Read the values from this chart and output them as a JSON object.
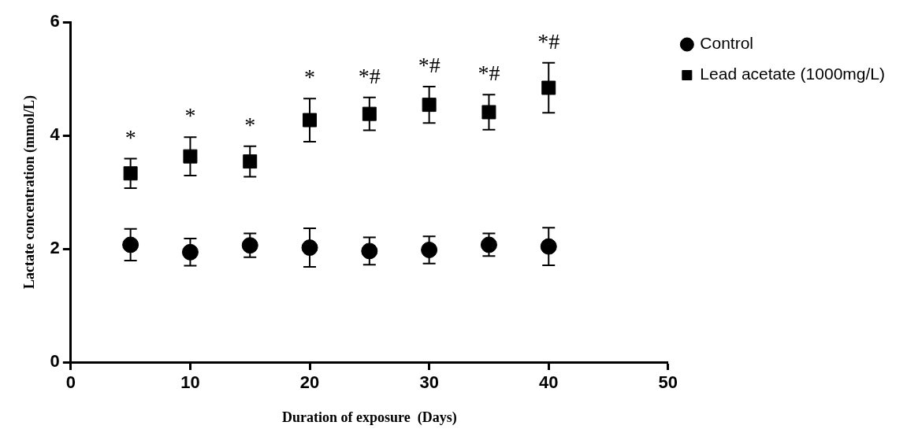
{
  "chart_data": {
    "type": "scatter",
    "xlabel": "Duration of exposure  (Days)",
    "ylabel": "Lactate concentration (mmol/L)",
    "xlim": [
      0,
      50
    ],
    "xticks": [
      0,
      10,
      20,
      30,
      40,
      50
    ],
    "ylim": [
      0,
      6
    ],
    "yticks": [
      0,
      2,
      4,
      6
    ],
    "grid": false,
    "legend": "top right",
    "series": [
      {
        "name": "Control",
        "color": "#000000",
        "marker": "circle",
        "x": [
          5,
          10,
          15,
          20,
          25,
          30,
          35,
          40
        ],
        "values": [
          2.07,
          1.94,
          2.06,
          2.02,
          1.96,
          1.98,
          2.07,
          2.04
        ],
        "errors": [
          0.28,
          0.24,
          0.21,
          0.34,
          0.24,
          0.24,
          0.2,
          0.33
        ]
      },
      {
        "name": "Lead acetate (1000mg/L)",
        "color": "#000000",
        "marker": "square",
        "x": [
          5,
          10,
          15,
          20,
          25,
          30,
          35,
          40
        ],
        "values": [
          3.33,
          3.63,
          3.54,
          4.27,
          4.38,
          4.54,
          4.41,
          4.84
        ],
        "errors": [
          0.26,
          0.34,
          0.27,
          0.38,
          0.29,
          0.32,
          0.31,
          0.44
        ]
      }
    ],
    "annotations": [
      "*",
      "*",
      "*",
      "*",
      "*#",
      "*#",
      "*#",
      "*#"
    ]
  }
}
